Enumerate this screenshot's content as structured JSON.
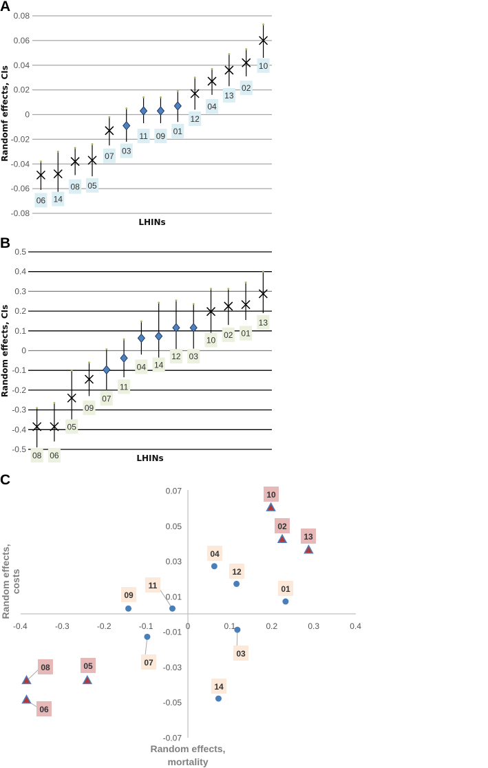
{
  "chart_data": [
    {
      "panel": "A",
      "type": "scatter",
      "title": "",
      "xlabel": "LHINs",
      "ylabel": "Randomf effects, CIs",
      "ylim": [
        -0.08,
        0.08
      ],
      "yticks": [
        "0.08",
        "0.06",
        "0.04",
        "0.02",
        "0",
        "-0.02",
        "-0.04",
        "-0.06",
        "-0.08"
      ],
      "grid": true,
      "label_color": "#dbeef4",
      "points": [
        {
          "label": "06",
          "value": -0.049,
          "low": -0.061,
          "high": -0.038,
          "marker": "x"
        },
        {
          "label": "14",
          "value": -0.048,
          "low": -0.064,
          "high": -0.03,
          "marker": "x"
        },
        {
          "label": "08",
          "value": -0.038,
          "low": -0.049,
          "high": -0.027,
          "marker": "x"
        },
        {
          "label": "05",
          "value": -0.037,
          "low": -0.05,
          "high": -0.024,
          "marker": "x"
        },
        {
          "label": "07",
          "value": -0.013,
          "low": -0.025,
          "high": -0.002,
          "marker": "x"
        },
        {
          "label": "03",
          "value": -0.009,
          "low": -0.022,
          "high": 0.005,
          "marker": "diamond"
        },
        {
          "label": "11",
          "value": 0.003,
          "low": -0.007,
          "high": 0.014,
          "marker": "diamond"
        },
        {
          "label": "09",
          "value": 0.003,
          "low": -0.007,
          "high": 0.014,
          "marker": "diamond"
        },
        {
          "label": "01",
          "value": 0.007,
          "low": -0.006,
          "high": 0.019,
          "marker": "diamond"
        },
        {
          "label": "12",
          "value": 0.017,
          "low": 0.004,
          "high": 0.03,
          "marker": "x"
        },
        {
          "label": "04",
          "value": 0.027,
          "low": 0.016,
          "high": 0.037,
          "marker": "x"
        },
        {
          "label": "13",
          "value": 0.036,
          "low": 0.023,
          "high": 0.049,
          "marker": "x"
        },
        {
          "label": "02",
          "value": 0.042,
          "low": 0.031,
          "high": 0.053,
          "marker": "x"
        },
        {
          "label": "10",
          "value": 0.06,
          "low": 0.046,
          "high": 0.073,
          "marker": "x"
        }
      ]
    },
    {
      "panel": "B",
      "type": "scatter",
      "title": "",
      "xlabel": "LHINs",
      "ylabel": "Random effects, CIs",
      "ylim": [
        -0.5,
        0.5
      ],
      "yticks": [
        "0.5",
        "0.4",
        "0.3",
        "0.2",
        "0.1",
        "0",
        "-0.1",
        "-0.2",
        "-0.3",
        "-0.4",
        "-0.5"
      ],
      "grid": true,
      "label_color": "#ebf1de",
      "points": [
        {
          "label": "08",
          "value": -0.385,
          "low": -0.49,
          "high": -0.29,
          "marker": "x"
        },
        {
          "label": "06",
          "value": -0.385,
          "low": -0.46,
          "high": -0.265,
          "marker": "x"
        },
        {
          "label": "05",
          "value": -0.24,
          "low": -0.39,
          "high": -0.1,
          "marker": "x"
        },
        {
          "label": "09",
          "value": -0.145,
          "low": -0.23,
          "high": -0.06,
          "marker": "x"
        },
        {
          "label": "07",
          "value": -0.097,
          "low": -0.197,
          "high": 0.007,
          "marker": "diamond"
        },
        {
          "label": "11",
          "value": -0.038,
          "low": -0.135,
          "high": 0.058,
          "marker": "diamond"
        },
        {
          "label": "04",
          "value": 0.063,
          "low": -0.02,
          "high": 0.148,
          "marker": "diamond"
        },
        {
          "label": "14",
          "value": 0.073,
          "low": -0.095,
          "high": 0.243,
          "marker": "diamond"
        },
        {
          "label": "12",
          "value": 0.116,
          "low": -0.025,
          "high": 0.254,
          "marker": "diamond"
        },
        {
          "label": "03",
          "value": 0.116,
          "low": 0.01,
          "high": 0.236,
          "marker": "diamond"
        },
        {
          "label": "10",
          "value": 0.198,
          "low": 0.08,
          "high": 0.313,
          "marker": "x"
        },
        {
          "label": "02",
          "value": 0.225,
          "low": 0.13,
          "high": 0.313,
          "marker": "x"
        },
        {
          "label": "01",
          "value": 0.233,
          "low": 0.155,
          "high": 0.345,
          "marker": "x"
        },
        {
          "label": "13",
          "value": 0.288,
          "low": 0.19,
          "high": 0.4,
          "marker": "x"
        }
      ]
    },
    {
      "panel": "C",
      "type": "scatter",
      "title": "",
      "xlabel": "Random effects, mortality",
      "ylabel": "Random effects, costs",
      "xlim": [
        -0.4,
        0.4
      ],
      "ylim": [
        -0.07,
        0.07
      ],
      "xticks": [
        "-0.4",
        "-0.3",
        "-0.2",
        "-0.1",
        "0",
        "0.1",
        "0.2",
        "0.3",
        "0.4"
      ],
      "yticks": [
        "0.07",
        "0.05",
        "0.03",
        "0.01",
        "-0.01",
        "-0.03",
        "-0.05",
        "-0.07"
      ],
      "grid": false,
      "colors": {
        "circle": "#4a7ebb",
        "triangle": "#b03a3a",
        "triangle_label": "#e6b9b8",
        "circle_label": "#fde9d9"
      },
      "points": [
        {
          "label": "10",
          "x": 0.198,
          "y": 0.06,
          "marker": "triangle"
        },
        {
          "label": "02",
          "x": 0.225,
          "y": 0.042,
          "marker": "triangle"
        },
        {
          "label": "13",
          "x": 0.288,
          "y": 0.036,
          "marker": "triangle"
        },
        {
          "label": "04",
          "x": 0.063,
          "y": 0.027,
          "marker": "circle"
        },
        {
          "label": "12",
          "x": 0.116,
          "y": 0.017,
          "marker": "circle"
        },
        {
          "label": "01",
          "x": 0.233,
          "y": 0.007,
          "marker": "circle"
        },
        {
          "label": "09",
          "x": -0.142,
          "y": 0.003,
          "marker": "circle"
        },
        {
          "label": "11",
          "x": -0.037,
          "y": 0.003,
          "marker": "circle"
        },
        {
          "label": "07",
          "x": -0.097,
          "y": -0.013,
          "marker": "circle"
        },
        {
          "label": "03",
          "x": 0.118,
          "y": -0.009,
          "marker": "circle"
        },
        {
          "label": "14",
          "x": 0.073,
          "y": -0.048,
          "marker": "circle"
        },
        {
          "label": "08",
          "x": -0.385,
          "y": -0.038,
          "marker": "triangle"
        },
        {
          "label": "05",
          "x": -0.24,
          "y": -0.038,
          "marker": "triangle"
        },
        {
          "label": "06",
          "x": -0.385,
          "y": -0.049,
          "marker": "triangle"
        }
      ]
    }
  ]
}
